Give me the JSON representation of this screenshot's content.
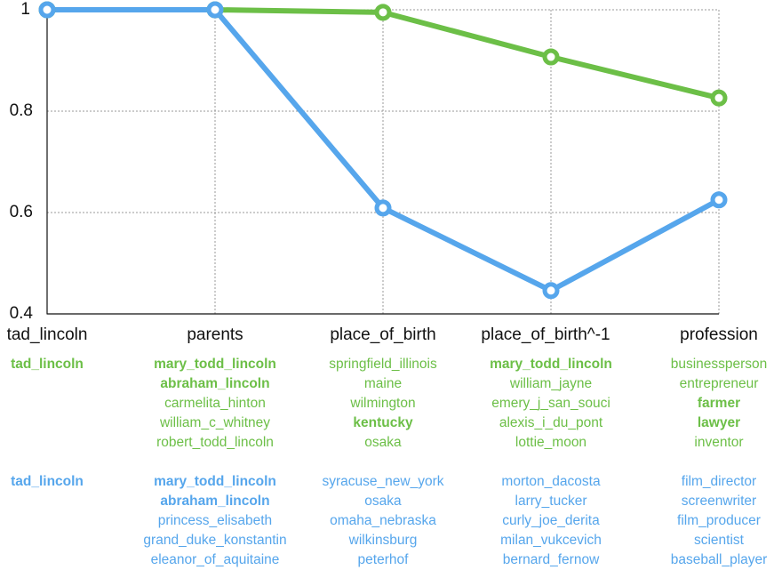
{
  "colors": {
    "green": "#6cbf47",
    "blue": "#56a6ec",
    "axis": "#111111",
    "grid": "#999999"
  },
  "chart_data": {
    "type": "line",
    "title": "",
    "xlabel": "",
    "ylabel": "",
    "ylim": [
      0.4,
      1.0
    ],
    "grid": true,
    "legend": null,
    "categories": [
      "tad_lincoln",
      "parents",
      "place_of_birth",
      "place_of_birth^-1",
      "profession"
    ],
    "y_ticks": [
      "1",
      "0.8",
      "0.6",
      "0.4"
    ],
    "series": [
      {
        "name": "green",
        "color": "#6cbf47",
        "values": [
          1.0,
          1.0,
          0.995,
          0.907,
          0.826
        ]
      },
      {
        "name": "blue",
        "color": "#56a6ec",
        "values": [
          1.0,
          1.0,
          0.609,
          0.446,
          0.625
        ]
      }
    ]
  },
  "ticks": {
    "y": [
      "1",
      "0.8",
      "0.6",
      "0.4"
    ]
  },
  "xlabels": [
    "tad_lincoln",
    "parents",
    "place_of_birth",
    "place_of_birth^-1",
    "profession"
  ],
  "green_lists": [
    {
      "items": [
        {
          "t": "tad_lincoln",
          "b": true
        }
      ]
    },
    {
      "items": [
        {
          "t": "mary_todd_lincoln",
          "b": true
        },
        {
          "t": "abraham_lincoln",
          "b": true
        },
        {
          "t": "carmelita_hinton",
          "b": false
        },
        {
          "t": "william_c_whitney",
          "b": false
        },
        {
          "t": "robert_todd_lincoln",
          "b": false
        }
      ]
    },
    {
      "items": [
        {
          "t": "springfield_illinois",
          "b": false
        },
        {
          "t": "maine",
          "b": false
        },
        {
          "t": "wilmington",
          "b": false
        },
        {
          "t": "kentucky",
          "b": true
        },
        {
          "t": "osaka",
          "b": false
        }
      ]
    },
    {
      "items": [
        {
          "t": "mary_todd_lincoln",
          "b": true
        },
        {
          "t": "william_jayne",
          "b": false
        },
        {
          "t": "emery_j_san_souci",
          "b": false
        },
        {
          "t": "alexis_i_du_pont",
          "b": false
        },
        {
          "t": "lottie_moon",
          "b": false
        }
      ]
    },
    {
      "items": [
        {
          "t": "businessperson",
          "b": false
        },
        {
          "t": "entrepreneur",
          "b": false
        },
        {
          "t": "farmer",
          "b": true
        },
        {
          "t": "lawyer",
          "b": true
        },
        {
          "t": "inventor",
          "b": false
        }
      ]
    }
  ],
  "blue_lists": [
    {
      "items": [
        {
          "t": "tad_lincoln",
          "b": true
        }
      ]
    },
    {
      "items": [
        {
          "t": "mary_todd_lincoln",
          "b": true
        },
        {
          "t": "abraham_lincoln",
          "b": true
        },
        {
          "t": "princess_elisabeth",
          "b": false
        },
        {
          "t": "grand_duke_konstantin",
          "b": false
        },
        {
          "t": "eleanor_of_aquitaine",
          "b": false
        }
      ]
    },
    {
      "items": [
        {
          "t": "syracuse_new_york",
          "b": false
        },
        {
          "t": "osaka",
          "b": false
        },
        {
          "t": "omaha_nebraska",
          "b": false
        },
        {
          "t": "wilkinsburg",
          "b": false
        },
        {
          "t": "peterhof",
          "b": false
        }
      ]
    },
    {
      "items": [
        {
          "t": "morton_dacosta",
          "b": false
        },
        {
          "t": "larry_tucker",
          "b": false
        },
        {
          "t": "curly_joe_derita",
          "b": false
        },
        {
          "t": "milan_vukcevich",
          "b": false
        },
        {
          "t": "bernard_fernow",
          "b": false
        }
      ]
    },
    {
      "items": [
        {
          "t": "film_director",
          "b": false
        },
        {
          "t": "screenwriter",
          "b": false
        },
        {
          "t": "film_producer",
          "b": false
        },
        {
          "t": "scientist",
          "b": false
        },
        {
          "t": "baseball_player",
          "b": false
        }
      ]
    }
  ]
}
